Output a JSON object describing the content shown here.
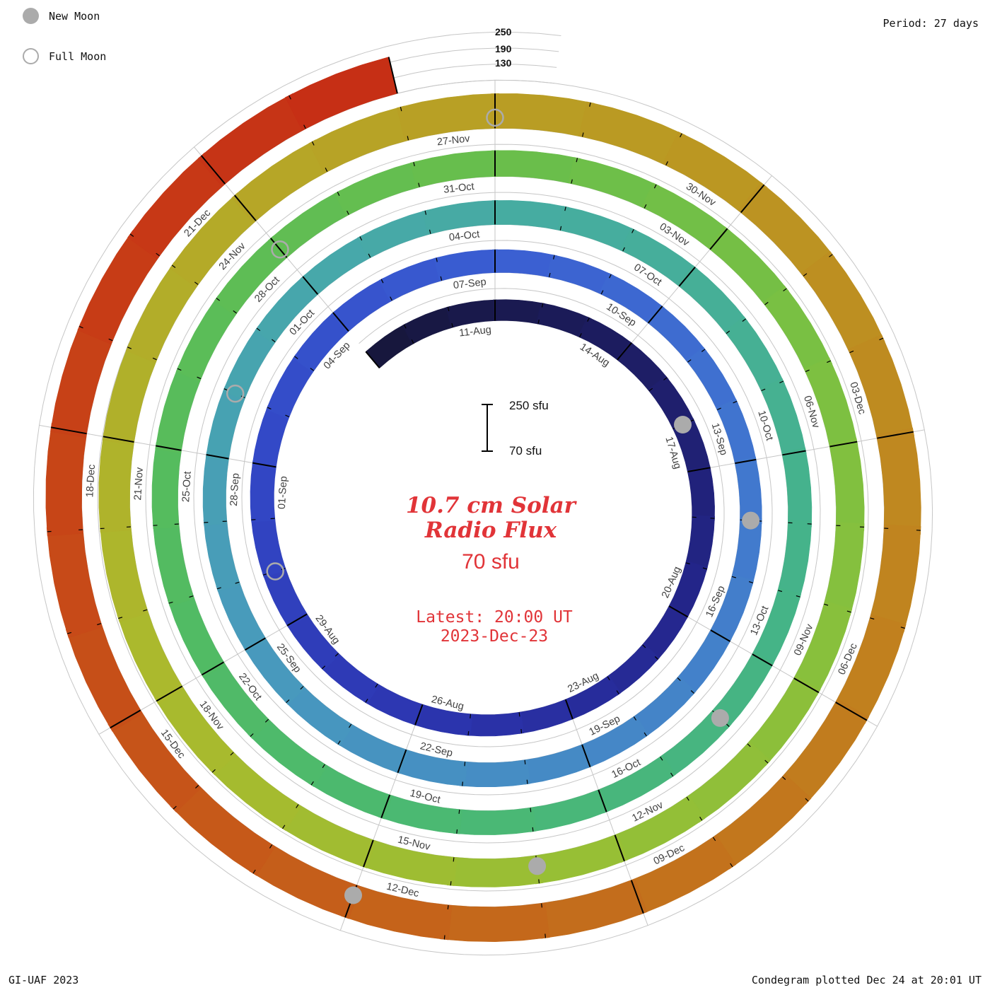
{
  "legend": {
    "new_moon": "New Moon",
    "full_moon": "Full Moon"
  },
  "period_label": "Period: 27 days",
  "footer": {
    "left": "GI-UAF 2023",
    "right": "Condegram plotted Dec 24 at 20:01 UT"
  },
  "center": {
    "title_line1": "10.7 cm Solar",
    "title_line2": "Radio Flux",
    "baseline_value": "70 sfu",
    "latest_label": "Latest: 20:00 UT",
    "latest_date": "2023-Dec-23",
    "scalebar_top": "250 sfu",
    "scalebar_bottom": "70 sfu"
  },
  "radial_scale_labels": [
    "250",
    "190",
    "130"
  ],
  "colors": {
    "accent_red": "#e13438",
    "moon_gray": "#ababab",
    "grid_gray": "#c6c6c6",
    "tick_black": "#000000",
    "label_gray": "#3f3f3f"
  },
  "chart_data": {
    "type": "spiral-condegram",
    "title": "10.7 cm Solar Radio Flux",
    "units": "sfu",
    "period_days": 27,
    "start_date": "08-Aug",
    "end_date": "23-Dec",
    "flux_min": 70,
    "flux_max": 250,
    "flux_gridlines": [
      130,
      190,
      250
    ],
    "date_labels": [
      "11-Aug",
      "14-Aug",
      "17-Aug",
      "20-Aug",
      "23-Aug",
      "26-Aug",
      "29-Aug",
      "01-Sep",
      "04-Sep",
      "07-Sep",
      "10-Sep",
      "13-Sep",
      "16-Sep",
      "19-Sep",
      "22-Sep",
      "25-Sep",
      "28-Sep",
      "01-Oct",
      "04-Oct",
      "07-Oct",
      "10-Oct",
      "13-Oct",
      "16-Oct",
      "19-Oct",
      "22-Oct",
      "25-Oct",
      "28-Oct",
      "31-Oct",
      "03-Nov",
      "06-Nov",
      "09-Nov",
      "12-Nov",
      "15-Nov",
      "18-Nov",
      "21-Nov",
      "24-Nov",
      "27-Nov",
      "30-Nov",
      "03-Dec",
      "06-Dec",
      "09-Dec",
      "12-Dec",
      "15-Dec",
      "18-Dec",
      "21-Dec"
    ],
    "flux_points": [
      {
        "date": "08-Aug",
        "flux": 150
      },
      {
        "date": "11-Aug",
        "flux": 148
      },
      {
        "date": "14-Aug",
        "flux": 153
      },
      {
        "date": "17-Aug",
        "flux": 156
      },
      {
        "date": "20-Aug",
        "flux": 151
      },
      {
        "date": "23-Aug",
        "flux": 148
      },
      {
        "date": "26-Aug",
        "flux": 152
      },
      {
        "date": "29-Aug",
        "flux": 156
      },
      {
        "date": "01-Sep",
        "flux": 159
      },
      {
        "date": "04-Sep",
        "flux": 161
      },
      {
        "date": "07-Sep",
        "flux": 156
      },
      {
        "date": "10-Sep",
        "flux": 152
      },
      {
        "date": "13-Sep",
        "flux": 150
      },
      {
        "date": "16-Sep",
        "flux": 154
      },
      {
        "date": "19-Sep",
        "flux": 159
      },
      {
        "date": "22-Sep",
        "flux": 162
      },
      {
        "date": "25-Sep",
        "flux": 158
      },
      {
        "date": "28-Sep",
        "flux": 155
      },
      {
        "date": "01-Oct",
        "flux": 157
      },
      {
        "date": "04-Oct",
        "flux": 160
      },
      {
        "date": "07-Oct",
        "flux": 163
      },
      {
        "date": "10-Oct",
        "flux": 159
      },
      {
        "date": "13-Oct",
        "flux": 156
      },
      {
        "date": "16-Oct",
        "flux": 158
      },
      {
        "date": "19-Oct",
        "flux": 162
      },
      {
        "date": "22-Oct",
        "flux": 165
      },
      {
        "date": "25-Oct",
        "flux": 167
      },
      {
        "date": "28-Oct",
        "flux": 164
      },
      {
        "date": "31-Oct",
        "flux": 167
      },
      {
        "date": "03-Nov",
        "flux": 171
      },
      {
        "date": "06-Nov",
        "flux": 174
      },
      {
        "date": "09-Nov",
        "flux": 177
      },
      {
        "date": "12-Nov",
        "flux": 174
      },
      {
        "date": "15-Nov",
        "flux": 177
      },
      {
        "date": "18-Nov",
        "flux": 181
      },
      {
        "date": "21-Nov",
        "flux": 187
      },
      {
        "date": "24-Nov",
        "flux": 194
      },
      {
        "date": "27-Nov",
        "flux": 200
      },
      {
        "date": "30-Nov",
        "flux": 205
      },
      {
        "date": "03-Dec",
        "flux": 208
      },
      {
        "date": "06-Dec",
        "flux": 205
      },
      {
        "date": "09-Dec",
        "flux": 202
      },
      {
        "date": "12-Dec",
        "flux": 198
      },
      {
        "date": "15-Dec",
        "flux": 201
      },
      {
        "date": "18-Dec",
        "flux": 205
      },
      {
        "date": "21-Dec",
        "flux": 208
      },
      {
        "date": "23-Dec",
        "flux": 210
      }
    ],
    "moons": [
      {
        "type": "new",
        "date": "16-Aug"
      },
      {
        "type": "full",
        "date": "30-Aug"
      },
      {
        "type": "new",
        "date": "14-Sep"
      },
      {
        "type": "full",
        "date": "29-Sep"
      },
      {
        "type": "new",
        "date": "14-Oct"
      },
      {
        "type": "full",
        "date": "28-Oct"
      },
      {
        "type": "new",
        "date": "13-Nov"
      },
      {
        "type": "full",
        "date": "27-Nov"
      },
      {
        "type": "new",
        "date": "12-Dec"
      }
    ],
    "color_stops": [
      {
        "date": "08-Aug",
        "color": "#16163a"
      },
      {
        "date": "14-Aug",
        "color": "#1d1d62"
      },
      {
        "date": "20-Aug",
        "color": "#24268c"
      },
      {
        "date": "26-Aug",
        "color": "#2c35b0"
      },
      {
        "date": "01-Sep",
        "color": "#3247c6"
      },
      {
        "date": "07-Sep",
        "color": "#3a5ed2"
      },
      {
        "date": "13-Sep",
        "color": "#4176cf"
      },
      {
        "date": "19-Sep",
        "color": "#4589c6"
      },
      {
        "date": "25-Sep",
        "color": "#489abc"
      },
      {
        "date": "01-Oct",
        "color": "#47a7ab"
      },
      {
        "date": "07-Oct",
        "color": "#46af99"
      },
      {
        "date": "13-Oct",
        "color": "#45b485"
      },
      {
        "date": "19-Oct",
        "color": "#4bb970"
      },
      {
        "date": "25-Oct",
        "color": "#56bc5c"
      },
      {
        "date": "31-Oct",
        "color": "#68be4c"
      },
      {
        "date": "06-Nov",
        "color": "#7fc040"
      },
      {
        "date": "12-Nov",
        "color": "#95bf36"
      },
      {
        "date": "18-Nov",
        "color": "#aaba2d"
      },
      {
        "date": "24-Nov",
        "color": "#b5a827"
      },
      {
        "date": "30-Nov",
        "color": "#bc9522"
      },
      {
        "date": "06-Dec",
        "color": "#c17e1e"
      },
      {
        "date": "12-Dec",
        "color": "#c5601a"
      },
      {
        "date": "18-Dec",
        "color": "#c74317"
      },
      {
        "date": "23-Dec",
        "color": "#c62d15"
      }
    ]
  }
}
